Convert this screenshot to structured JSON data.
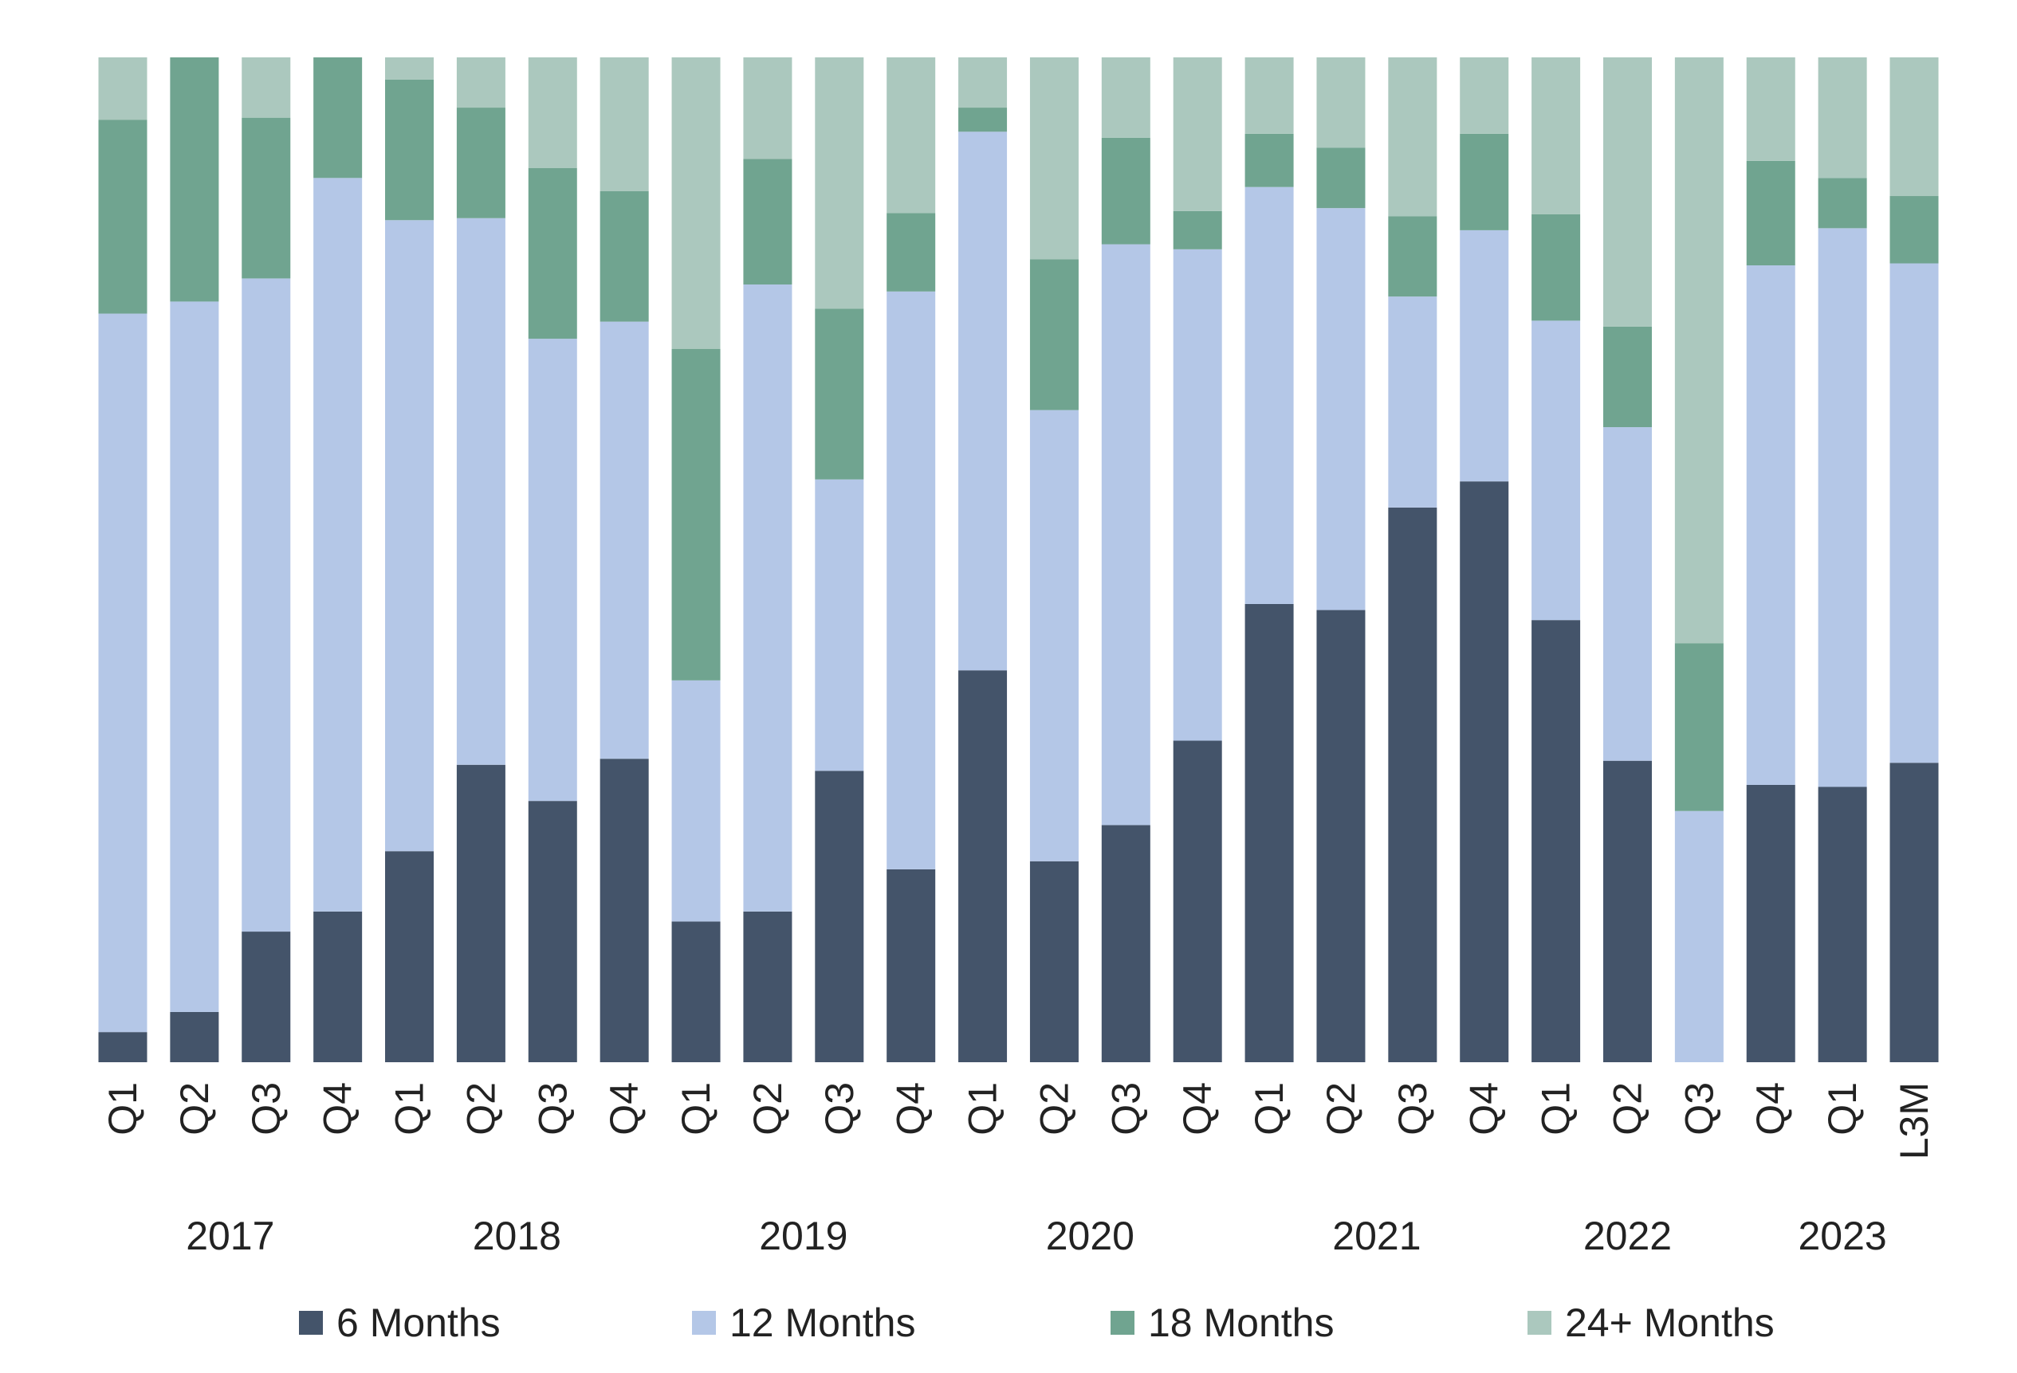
{
  "chart_data": {
    "type": "bar",
    "stacked": true,
    "normalized": true,
    "ylim": [
      0,
      100
    ],
    "categories": [
      "Q1",
      "Q2",
      "Q3",
      "Q4",
      "Q1",
      "Q2",
      "Q3",
      "Q4",
      "Q1",
      "Q2",
      "Q3",
      "Q4",
      "Q1",
      "Q2",
      "Q3",
      "Q4",
      "Q1",
      "Q2",
      "Q3",
      "Q4",
      "Q1",
      "Q2",
      "Q3",
      "Q4",
      "Q1",
      "L3M"
    ],
    "year_groups": [
      {
        "label": "2017",
        "start": 0,
        "end": 3
      },
      {
        "label": "2018",
        "start": 4,
        "end": 7
      },
      {
        "label": "2019",
        "start": 8,
        "end": 11
      },
      {
        "label": "2020",
        "start": 12,
        "end": 15
      },
      {
        "label": "2021",
        "start": 16,
        "end": 19
      },
      {
        "label": "2022",
        "start": 20,
        "end": 22
      },
      {
        "label": "2023",
        "start": 23,
        "end": 25
      }
    ],
    "series": [
      {
        "name": "6 Months",
        "color": "#44546a",
        "values": [
          3,
          5,
          13,
          15,
          21,
          29.6,
          26,
          30.2,
          14,
          15,
          29,
          19.2,
          39,
          20,
          23.6,
          32,
          45.6,
          45,
          55.2,
          57.8,
          44,
          30,
          0,
          27.6,
          27.4,
          29.8
        ]
      },
      {
        "name": "12 Months",
        "color": "#b4c7e7",
        "values": [
          71.5,
          70.7,
          65,
          73,
          62.8,
          54.4,
          46,
          43.5,
          24,
          62.4,
          29,
          57.5,
          53.6,
          44.9,
          57.8,
          48.9,
          41.5,
          40,
          21,
          25,
          29.8,
          33.2,
          25,
          51.7,
          55.6,
          49.7
        ]
      },
      {
        "name": "18 Months",
        "color": "#70a490",
        "values": [
          19.3,
          24.3,
          16,
          12,
          14,
          11,
          17,
          13,
          33,
          12.5,
          17,
          7.8,
          2.4,
          15,
          10.6,
          3.8,
          5.3,
          6,
          8,
          9.6,
          10.6,
          10,
          16.7,
          10.4,
          5,
          6.7
        ]
      },
      {
        "name": "24+ Months",
        "color": "#abc8be",
        "values": [
          6.2,
          0,
          6,
          0,
          2.2,
          5,
          11,
          13.3,
          29,
          10.1,
          25,
          15.5,
          5,
          20.1,
          8,
          15.3,
          7.6,
          9,
          15.8,
          7.6,
          15.6,
          26.8,
          58.3,
          10.3,
          12,
          13.8
        ]
      }
    ],
    "legend_position": "bottom",
    "grid": false,
    "title": "",
    "xlabel": "",
    "ylabel": ""
  }
}
